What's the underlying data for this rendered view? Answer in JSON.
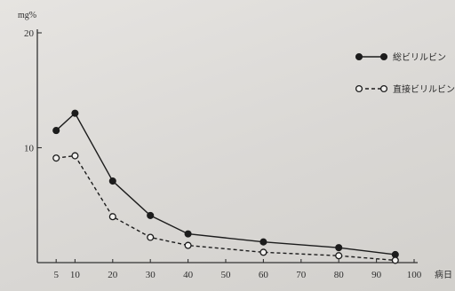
{
  "chart_data": {
    "type": "line",
    "x_unit": "病日",
    "y_unit": "mg%",
    "x_ticks": [
      5,
      10,
      20,
      30,
      40,
      50,
      60,
      70,
      80,
      90,
      100
    ],
    "y_ticks": [
      10,
      20
    ],
    "xlim": [
      0,
      100
    ],
    "ylim": [
      0,
      20
    ],
    "grid": false,
    "legend_position": "top-right",
    "series": [
      {
        "name": "総ビリルビン",
        "style": "solid",
        "marker": "filled-circle",
        "points": [
          [
            5,
            11.5
          ],
          [
            10,
            13.0
          ],
          [
            20,
            7.1
          ],
          [
            30,
            4.1
          ],
          [
            40,
            2.5
          ],
          [
            60,
            1.8
          ],
          [
            80,
            1.3
          ],
          [
            95,
            0.7
          ]
        ]
      },
      {
        "name": "直接ビリルビン",
        "style": "dashed",
        "marker": "open-circle",
        "points": [
          [
            5,
            9.1
          ],
          [
            10,
            9.3
          ],
          [
            20,
            4.0
          ],
          [
            30,
            2.2
          ],
          [
            40,
            1.5
          ],
          [
            60,
            0.9
          ],
          [
            80,
            0.6
          ],
          [
            95,
            0.2
          ]
        ]
      }
    ]
  },
  "colors": {
    "ink": "#1c1c1c",
    "background": "#e0dedb"
  }
}
